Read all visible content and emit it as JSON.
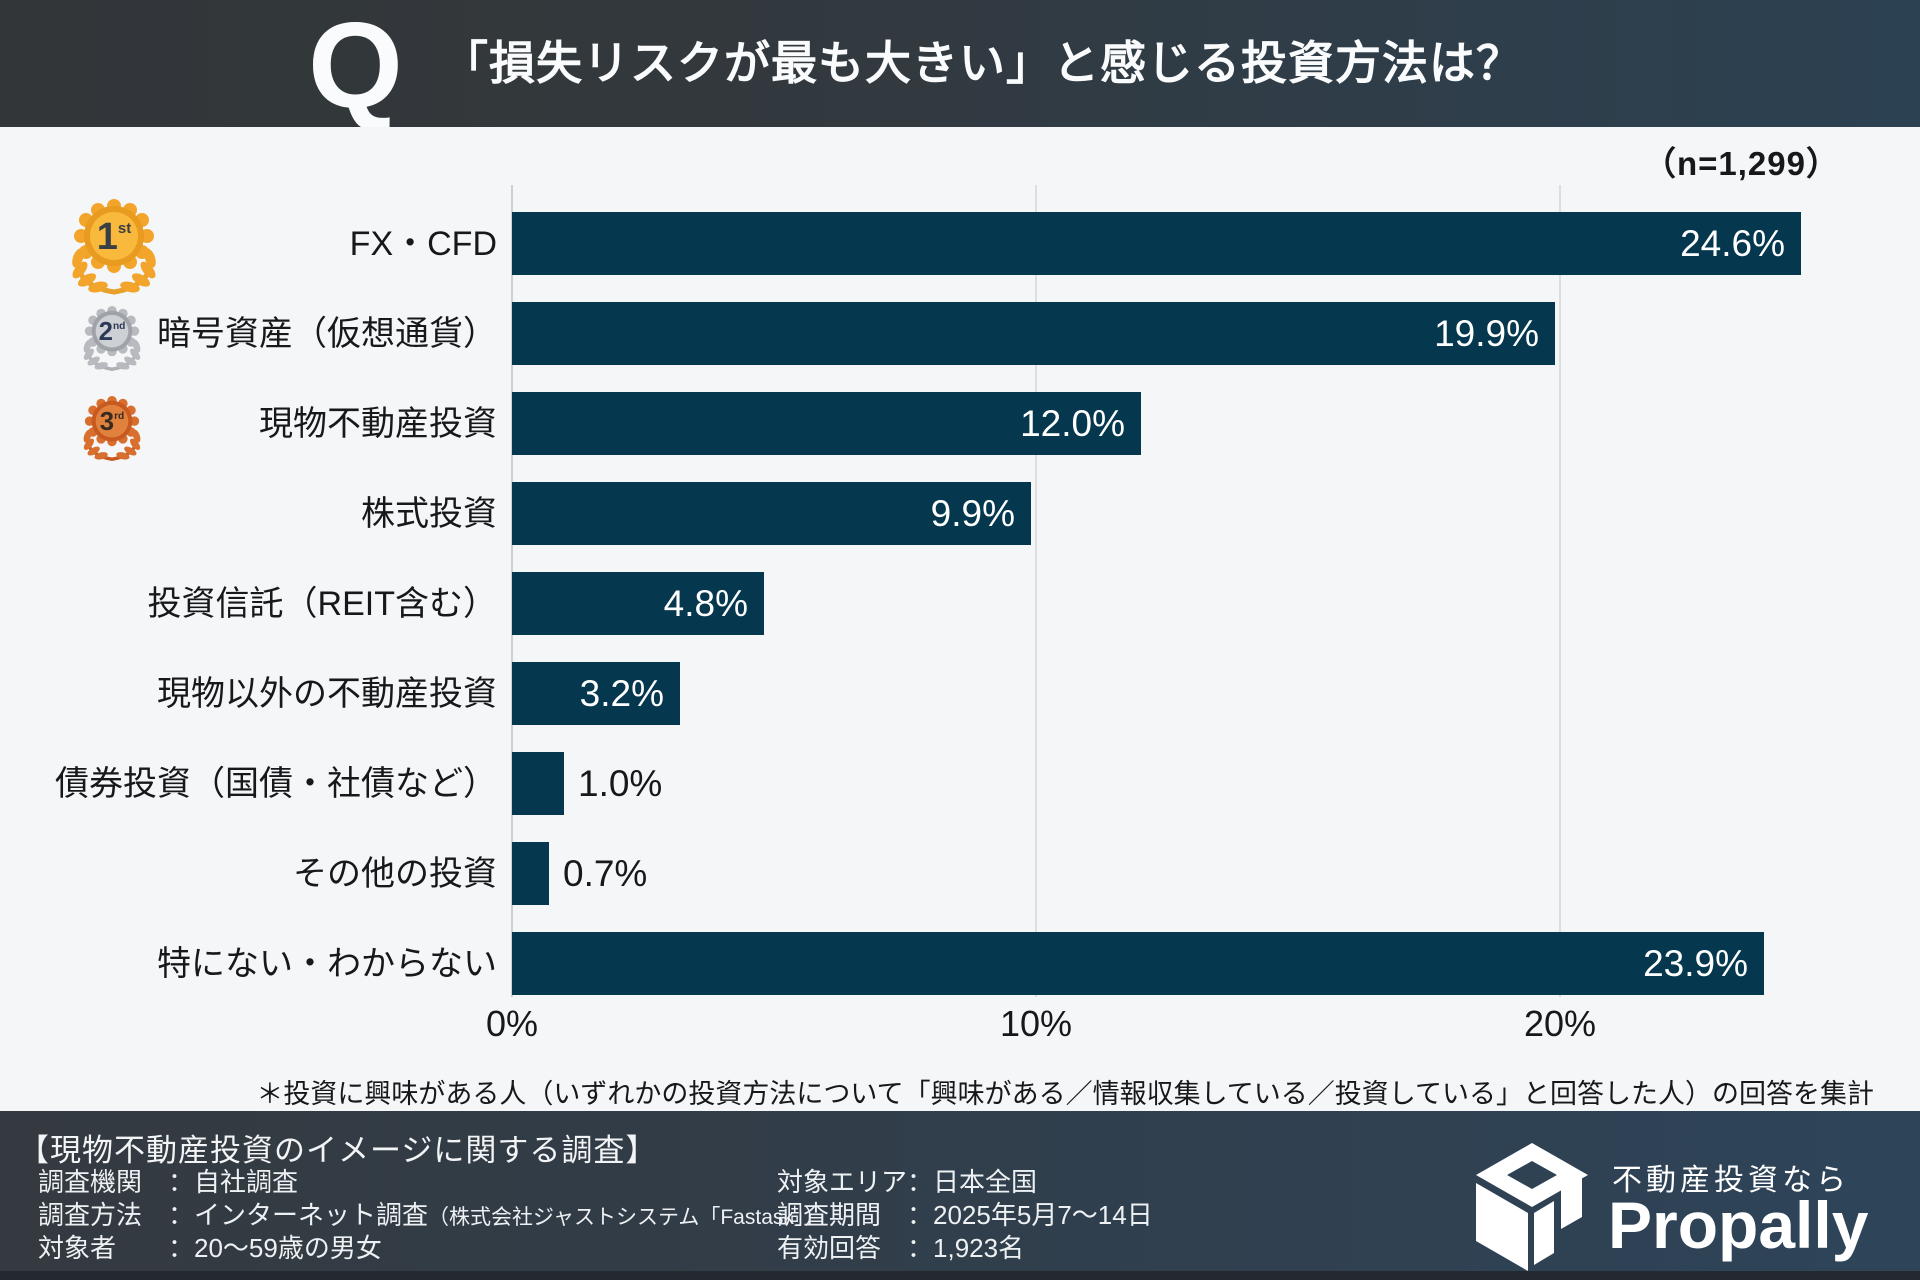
{
  "header": {
    "q_mark": "Q",
    "title": "「損失リスクが最も大きい」と感じる投資方法は？"
  },
  "chart_data": {
    "type": "bar",
    "orientation": "horizontal",
    "title": "「損失リスクが最も大きい」と感じる投資方法は？",
    "sample_label": "（n=1,299）",
    "categories": [
      "FX・CFD",
      "暗号資産（仮想通貨）",
      "現物不動産投資",
      "株式投資",
      "投資信託（REIT含む）",
      "現物以外の不動産投資",
      "債券投資（国債・社債など）",
      "その他の投資",
      "特にない・わからない"
    ],
    "values": [
      24.6,
      19.9,
      12.0,
      9.9,
      4.8,
      3.2,
      1.0,
      0.7,
      23.9
    ],
    "value_labels": [
      "24.6%",
      "19.9%",
      "12.0%",
      "9.9%",
      "4.8%",
      "3.2%",
      "1.0%",
      "0.7%",
      "23.9%"
    ],
    "xlabel": "",
    "ylabel": "",
    "xlim": [
      0,
      26
    ],
    "x_ticks": [
      "0%",
      "10%",
      "20%"
    ],
    "x_tick_values": [
      0,
      10,
      20
    ],
    "grid": true,
    "bar_color": "#05374e",
    "background_color": "#f5f6f7",
    "ranks": [
      {
        "number": "1",
        "suffix": "st"
      },
      {
        "number": "2",
        "suffix": "nd"
      },
      {
        "number": "3",
        "suffix": "rd"
      }
    ]
  },
  "note": "＊投資に興味がある人（いずれかの投資方法について「興味がある／情報収集している／投資している」と回答した人）の回答を集計",
  "footer": {
    "survey_title": "【現物不動産投資のイメージに関する調査】",
    "left_rows": [
      {
        "label": "調査機関　",
        "value": "：自社調査",
        "small": ""
      },
      {
        "label": "調査方法　",
        "value": "：インターネット調査",
        "small": "（株式会社ジャストシステム「Fastask」）"
      },
      {
        "label": "対象者　　",
        "value": "：20〜59歳の男女",
        "small": ""
      }
    ],
    "right_rows": [
      {
        "label": "対象エリア",
        "value": "：日本全国",
        "small": ""
      },
      {
        "label": "調査期間　",
        "value": "：2025年5月7〜14日",
        "small": ""
      },
      {
        "label": "有効回答　",
        "value": "：1,923名",
        "small": ""
      }
    ],
    "logo": {
      "tagline": "不動産投資なら",
      "brand": "Propally"
    }
  },
  "colors": {
    "bar": "#05374e",
    "header_left": "#323639",
    "header_right": "#2c4152",
    "gold": "#f2a52a",
    "silver": "#b7babe",
    "bronze": "#d96f2e"
  }
}
